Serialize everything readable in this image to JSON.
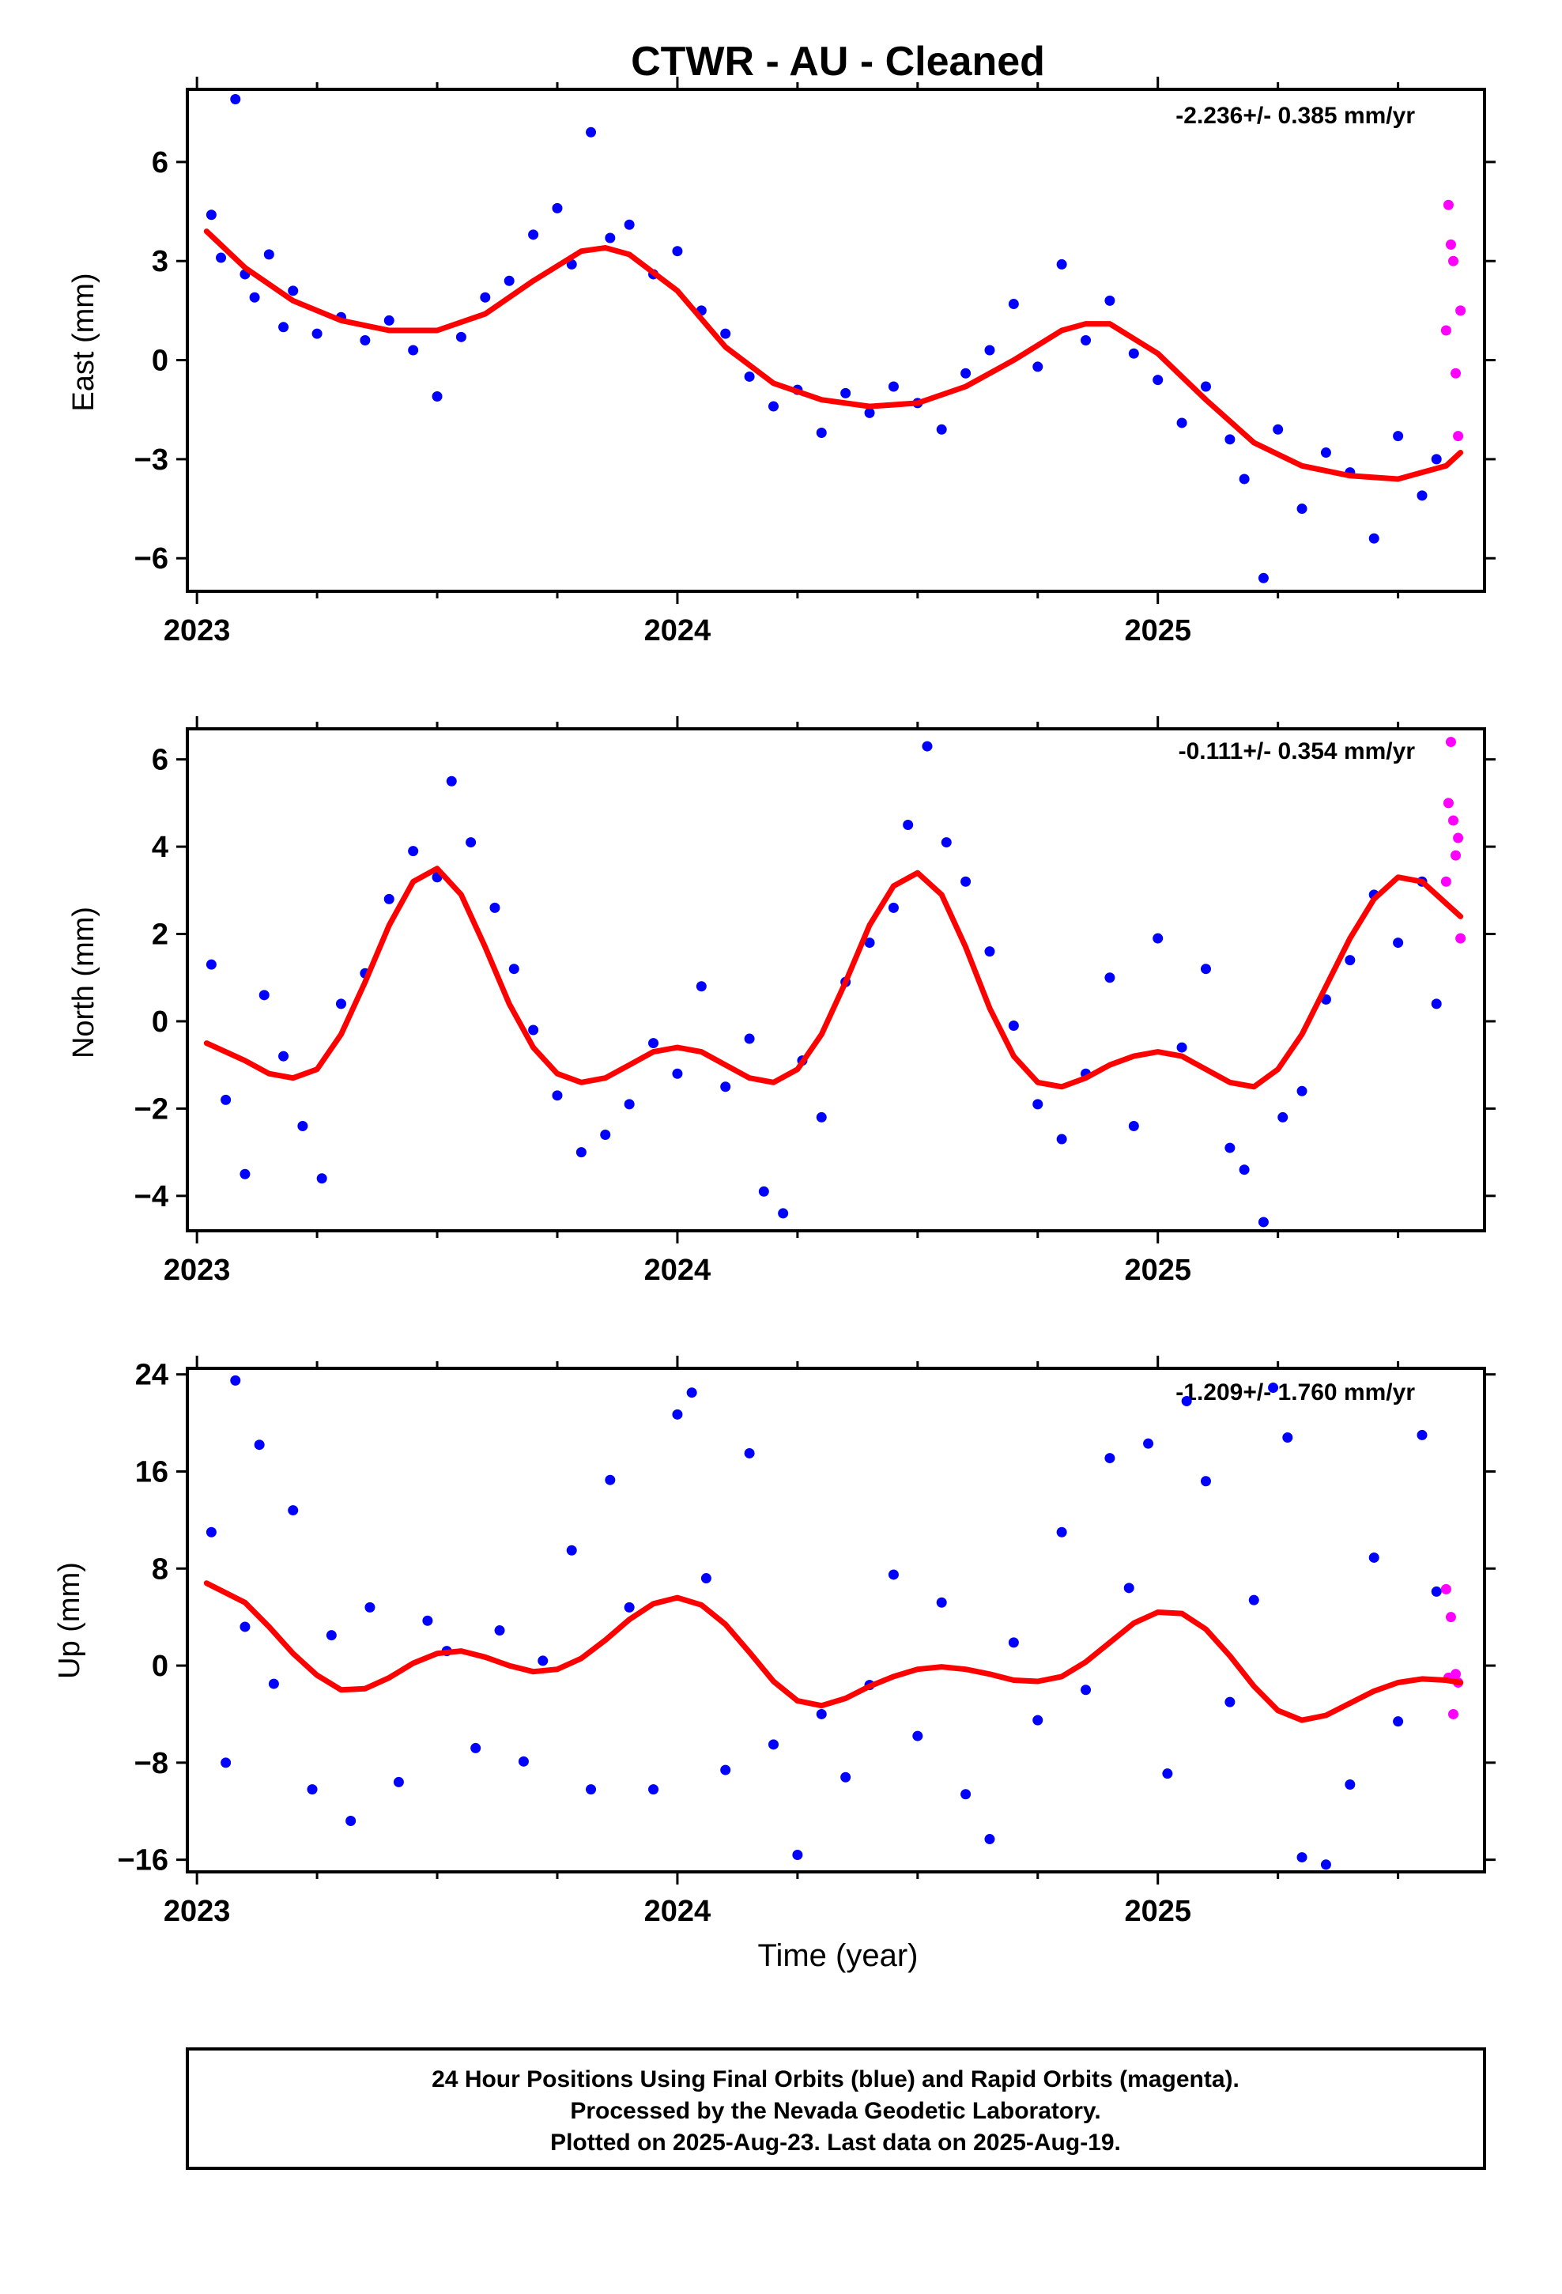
{
  "title": "CTWR  - AU - Cleaned",
  "xlabel": "Time (year)",
  "footer": [
    "24 Hour Positions Using Final Orbits (blue) and Rapid Orbits (magenta).",
    "Processed by the Nevada Geodetic Laboratory.",
    "Plotted on 2025-Aug-23. Last data on 2025-Aug-19."
  ],
  "colors": {
    "final": "#0000ff",
    "rapid": "#ff00ff",
    "model": "#ff0000",
    "frame": "#000000"
  },
  "chart_data": [
    {
      "type": "scatter",
      "name": "east",
      "ylabel": "East (mm)",
      "rate": "-2.236+/- 0.385 mm/yr",
      "xlim": [
        2022.98,
        2025.68
      ],
      "ylim": [
        -7.0,
        8.2
      ],
      "xticks": [
        2023,
        2024,
        2025
      ],
      "yticks": [
        6,
        3,
        0,
        -3,
        -6
      ],
      "ytick_labels": [
        "6",
        "3",
        "0",
        "−3",
        "−6"
      ],
      "model_x": [
        2023.02,
        2023.1,
        2023.2,
        2023.3,
        2023.4,
        2023.5,
        2023.6,
        2023.7,
        2023.8,
        2023.85,
        2023.9,
        2024.0,
        2024.1,
        2024.2,
        2024.3,
        2024.4,
        2024.5,
        2024.6,
        2024.7,
        2024.8,
        2024.85,
        2024.9,
        2025.0,
        2025.1,
        2025.2,
        2025.3,
        2025.4,
        2025.5,
        2025.6,
        2025.63
      ],
      "model_y": [
        3.9,
        2.8,
        1.8,
        1.2,
        0.9,
        0.9,
        1.4,
        2.4,
        3.3,
        3.4,
        3.2,
        2.1,
        0.4,
        -0.7,
        -1.2,
        -1.4,
        -1.3,
        -0.8,
        0.0,
        0.9,
        1.1,
        1.1,
        0.2,
        -1.2,
        -2.5,
        -3.2,
        -3.5,
        -3.6,
        -3.2,
        -2.8
      ],
      "final_x": [
        2023.03,
        2023.05,
        2023.08,
        2023.1,
        2023.12,
        2023.15,
        2023.18,
        2023.2,
        2023.25,
        2023.3,
        2023.35,
        2023.4,
        2023.45,
        2023.5,
        2023.55,
        2023.6,
        2023.65,
        2023.7,
        2023.75,
        2023.78,
        2023.82,
        2023.86,
        2023.9,
        2023.95,
        2024.0,
        2024.05,
        2024.1,
        2024.15,
        2024.2,
        2024.25,
        2024.3,
        2024.35,
        2024.4,
        2024.45,
        2024.5,
        2024.55,
        2024.6,
        2024.65,
        2024.7,
        2024.75,
        2024.8,
        2024.85,
        2024.9,
        2024.95,
        2025.0,
        2025.05,
        2025.1,
        2025.15,
        2025.18,
        2025.22,
        2025.25,
        2025.3,
        2025.35,
        2025.4,
        2025.45,
        2025.5,
        2025.55,
        2025.58
      ],
      "final_y": [
        4.4,
        3.1,
        7.9,
        2.6,
        1.9,
        3.2,
        1.0,
        2.1,
        0.8,
        1.3,
        0.6,
        1.2,
        0.3,
        -1.1,
        0.7,
        1.9,
        2.4,
        3.8,
        4.6,
        2.9,
        6.9,
        3.7,
        4.1,
        2.6,
        3.3,
        1.5,
        0.8,
        -0.5,
        -1.4,
        -0.9,
        -2.2,
        -1.0,
        -1.6,
        -0.8,
        -1.3,
        -2.1,
        -0.4,
        0.3,
        1.7,
        -0.2,
        2.9,
        0.6,
        1.8,
        0.2,
        -0.6,
        -1.9,
        -0.8,
        -2.4,
        -3.6,
        -6.6,
        -2.1,
        -4.5,
        -2.8,
        -3.4,
        -5.4,
        -2.3,
        -4.1,
        -3.0
      ],
      "rapid_x": [
        2025.6,
        2025.605,
        2025.61,
        2025.615,
        2025.62,
        2025.625,
        2025.63
      ],
      "rapid_y": [
        0.9,
        4.7,
        3.5,
        3.0,
        -0.4,
        -2.3,
        1.5
      ]
    },
    {
      "type": "scatter",
      "name": "north",
      "ylabel": "North (mm)",
      "rate": "-0.111+/- 0.354 mm/yr",
      "xlim": [
        2022.98,
        2025.68
      ],
      "ylim": [
        -4.8,
        6.7
      ],
      "xticks": [
        2023,
        2024,
        2025
      ],
      "yticks": [
        6,
        4,
        2,
        0,
        -2,
        -4
      ],
      "ytick_labels": [
        "6",
        "4",
        "2",
        "0",
        "−2",
        "−4"
      ],
      "model_x": [
        2023.02,
        2023.1,
        2023.15,
        2023.2,
        2023.25,
        2023.3,
        2023.35,
        2023.4,
        2023.45,
        2023.5,
        2023.55,
        2023.6,
        2023.65,
        2023.7,
        2023.75,
        2023.8,
        2023.85,
        2023.9,
        2023.95,
        2024.0,
        2024.05,
        2024.1,
        2024.15,
        2024.2,
        2024.25,
        2024.3,
        2024.35,
        2024.4,
        2024.45,
        2024.5,
        2024.55,
        2024.6,
        2024.65,
        2024.7,
        2024.75,
        2024.8,
        2024.85,
        2024.9,
        2024.95,
        2025.0,
        2025.05,
        2025.1,
        2025.15,
        2025.2,
        2025.25,
        2025.3,
        2025.35,
        2025.4,
        2025.45,
        2025.5,
        2025.55,
        2025.6,
        2025.63
      ],
      "model_y": [
        -0.5,
        -0.9,
        -1.2,
        -1.3,
        -1.1,
        -0.3,
        0.9,
        2.2,
        3.2,
        3.5,
        2.9,
        1.7,
        0.4,
        -0.6,
        -1.2,
        -1.4,
        -1.3,
        -1.0,
        -0.7,
        -0.6,
        -0.7,
        -1.0,
        -1.3,
        -1.4,
        -1.1,
        -0.3,
        0.9,
        2.2,
        3.1,
        3.4,
        2.9,
        1.7,
        0.3,
        -0.8,
        -1.4,
        -1.5,
        -1.3,
        -1.0,
        -0.8,
        -0.7,
        -0.8,
        -1.1,
        -1.4,
        -1.5,
        -1.1,
        -0.3,
        0.8,
        1.9,
        2.8,
        3.3,
        3.2,
        2.7,
        2.4
      ],
      "final_x": [
        2023.03,
        2023.06,
        2023.1,
        2023.14,
        2023.18,
        2023.22,
        2023.26,
        2023.3,
        2023.35,
        2023.4,
        2023.45,
        2023.5,
        2023.53,
        2023.57,
        2023.62,
        2023.66,
        2023.7,
        2023.75,
        2023.8,
        2023.85,
        2023.9,
        2023.95,
        2024.0,
        2024.05,
        2024.1,
        2024.15,
        2024.18,
        2024.22,
        2024.26,
        2024.3,
        2024.35,
        2024.4,
        2024.45,
        2024.48,
        2024.52,
        2024.56,
        2024.6,
        2024.65,
        2024.7,
        2024.75,
        2024.8,
        2024.85,
        2024.9,
        2024.95,
        2025.0,
        2025.05,
        2025.1,
        2025.15,
        2025.18,
        2025.22,
        2025.26,
        2025.3,
        2025.35,
        2025.4,
        2025.45,
        2025.5,
        2025.55,
        2025.58
      ],
      "final_y": [
        1.3,
        -1.8,
        -3.5,
        0.6,
        -0.8,
        -2.4,
        -3.6,
        0.4,
        1.1,
        2.8,
        3.9,
        3.3,
        5.5,
        4.1,
        2.6,
        1.2,
        -0.2,
        -1.7,
        -3.0,
        -2.6,
        -1.9,
        -0.5,
        -1.2,
        0.8,
        -1.5,
        -0.4,
        -3.9,
        -4.4,
        -0.9,
        -2.2,
        0.9,
        1.8,
        2.6,
        4.5,
        6.3,
        4.1,
        3.2,
        1.6,
        -0.1,
        -1.9,
        -2.7,
        -1.2,
        1.0,
        -2.4,
        1.9,
        -0.6,
        1.2,
        -2.9,
        -3.4,
        -4.6,
        -2.2,
        -1.6,
        0.5,
        1.4,
        2.9,
        1.8,
        3.2,
        0.4
      ],
      "rapid_x": [
        2025.6,
        2025.605,
        2025.61,
        2025.615,
        2025.62,
        2025.625,
        2025.63
      ],
      "rapid_y": [
        3.2,
        5.0,
        6.4,
        4.6,
        3.8,
        4.2,
        1.9
      ]
    },
    {
      "type": "scatter",
      "name": "up",
      "ylabel": "Up (mm)",
      "rate": "-1.209+/- 1.760 mm/yr",
      "xlim": [
        2022.98,
        2025.68
      ],
      "ylim": [
        -17,
        24.5
      ],
      "xticks": [
        2023,
        2024,
        2025
      ],
      "yticks": [
        24,
        16,
        8,
        0,
        -8,
        -16
      ],
      "ytick_labels": [
        "24",
        "16",
        "8",
        "0",
        "−8",
        "−16"
      ],
      "model_x": [
        2023.02,
        2023.1,
        2023.15,
        2023.2,
        2023.25,
        2023.3,
        2023.35,
        2023.4,
        2023.45,
        2023.5,
        2023.55,
        2023.6,
        2023.65,
        2023.7,
        2023.75,
        2023.8,
        2023.85,
        2023.9,
        2023.95,
        2024.0,
        2024.05,
        2024.1,
        2024.15,
        2024.2,
        2024.25,
        2024.3,
        2024.35,
        2024.4,
        2024.45,
        2024.5,
        2024.55,
        2024.6,
        2024.65,
        2024.7,
        2024.75,
        2024.8,
        2024.85,
        2024.9,
        2024.95,
        2025.0,
        2025.05,
        2025.1,
        2025.15,
        2025.2,
        2025.25,
        2025.3,
        2025.35,
        2025.4,
        2025.45,
        2025.5,
        2025.55,
        2025.6,
        2025.63
      ],
      "model_y": [
        6.8,
        5.2,
        3.2,
        1.0,
        -0.8,
        -2.0,
        -1.9,
        -1.0,
        0.2,
        1.0,
        1.2,
        0.7,
        0.0,
        -0.5,
        -0.3,
        0.6,
        2.1,
        3.8,
        5.1,
        5.6,
        5.0,
        3.4,
        1.1,
        -1.3,
        -2.9,
        -3.3,
        -2.7,
        -1.7,
        -0.9,
        -0.3,
        -0.1,
        -0.3,
        -0.7,
        -1.2,
        -1.3,
        -0.9,
        0.3,
        1.9,
        3.5,
        4.4,
        4.3,
        3.0,
        0.8,
        -1.7,
        -3.7,
        -4.5,
        -4.1,
        -3.1,
        -2.1,
        -1.4,
        -1.1,
        -1.2,
        -1.4
      ],
      "final_x": [
        2023.03,
        2023.06,
        2023.08,
        2023.1,
        2023.13,
        2023.16,
        2023.2,
        2023.24,
        2023.28,
        2023.32,
        2023.36,
        2023.42,
        2023.48,
        2023.52,
        2023.58,
        2023.63,
        2023.68,
        2023.72,
        2023.78,
        2023.82,
        2023.86,
        2023.9,
        2023.95,
        2024.0,
        2024.03,
        2024.06,
        2024.1,
        2024.15,
        2024.2,
        2024.25,
        2024.3,
        2024.35,
        2024.4,
        2024.45,
        2024.5,
        2024.55,
        2024.6,
        2024.65,
        2024.7,
        2024.75,
        2024.8,
        2024.85,
        2024.9,
        2024.94,
        2024.98,
        2025.02,
        2025.06,
        2025.1,
        2025.15,
        2025.2,
        2025.24,
        2025.27,
        2025.3,
        2025.35,
        2025.4,
        2025.45,
        2025.5,
        2025.55,
        2025.58
      ],
      "final_y": [
        11.0,
        -8.0,
        23.5,
        3.2,
        18.2,
        -1.5,
        12.8,
        -10.2,
        2.5,
        -12.8,
        4.8,
        -9.6,
        3.7,
        1.2,
        -6.8,
        2.9,
        -7.9,
        0.4,
        9.5,
        -10.2,
        15.3,
        4.8,
        -10.2,
        20.7,
        22.5,
        7.2,
        -8.6,
        17.5,
        -6.5,
        -15.6,
        -4.0,
        -9.2,
        -1.6,
        7.5,
        -5.8,
        5.2,
        -10.6,
        -14.3,
        1.9,
        -4.5,
        11.0,
        -2.0,
        17.1,
        6.4,
        18.3,
        -8.9,
        21.8,
        15.2,
        -3.0,
        5.4,
        22.9,
        18.8,
        -15.8,
        -16.4,
        -9.8,
        8.9,
        -4.6,
        19.0,
        6.1
      ],
      "rapid_x": [
        2025.6,
        2025.605,
        2025.61,
        2025.615,
        2025.62,
        2025.625
      ],
      "rapid_y": [
        6.3,
        -1.0,
        4.0,
        -4.0,
        -0.7,
        -1.4
      ]
    }
  ]
}
